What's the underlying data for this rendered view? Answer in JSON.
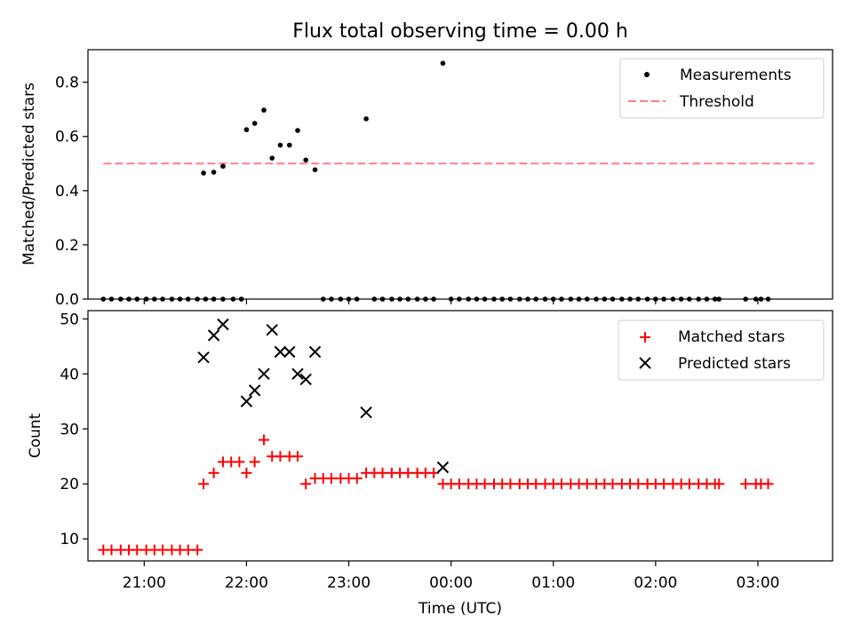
{
  "title": "Flux total observing time = 0.00 h",
  "chart_data": [
    {
      "type": "scatter",
      "panel": "top",
      "ylabel": "Matched/Predicted stars",
      "xlabel": "",
      "ylim": [
        0,
        0.92
      ],
      "yticks": [
        0.0,
        0.2,
        0.4,
        0.6,
        0.8
      ],
      "ytick_labels": [
        "0.0",
        "0.2",
        "0.4",
        "0.6",
        "0.8"
      ],
      "xlim_hours": [
        20.45,
        27.73
      ],
      "legend_position": "top-right",
      "grid": false,
      "threshold": {
        "name": "Threshold",
        "y": 0.5,
        "x_range_hours": [
          20.6,
          27.55
        ],
        "color": "#ff7f7f",
        "style": "dashed"
      },
      "series": [
        {
          "name": "Measurements",
          "color": "#000000",
          "marker": "dot",
          "points": [
            [
              20.6,
              0
            ],
            [
              20.68,
              0
            ],
            [
              20.77,
              0
            ],
            [
              20.85,
              0
            ],
            [
              20.93,
              0
            ],
            [
              21.02,
              0
            ],
            [
              21.1,
              0
            ],
            [
              21.18,
              0
            ],
            [
              21.27,
              0
            ],
            [
              21.35,
              0
            ],
            [
              21.43,
              0
            ],
            [
              21.52,
              0
            ],
            [
              21.6,
              0
            ],
            [
              21.68,
              0
            ],
            [
              21.77,
              0
            ],
            [
              21.58,
              0.465
            ],
            [
              21.68,
              0.468
            ],
            [
              21.77,
              0.49
            ],
            [
              21.87,
              0
            ],
            [
              21.95,
              0
            ],
            [
              22.0,
              0.625
            ],
            [
              22.08,
              0.648
            ],
            [
              22.17,
              0.697
            ],
            [
              22.25,
              0.52
            ],
            [
              22.33,
              0.568
            ],
            [
              22.42,
              0.568
            ],
            [
              22.5,
              0.622
            ],
            [
              22.58,
              0.513
            ],
            [
              22.67,
              0.477
            ],
            [
              22.75,
              0
            ],
            [
              22.83,
              0
            ],
            [
              22.92,
              0
            ],
            [
              23.0,
              0
            ],
            [
              23.08,
              0
            ],
            [
              23.17,
              0.665
            ],
            [
              23.25,
              0
            ],
            [
              23.33,
              0
            ],
            [
              23.42,
              0
            ],
            [
              23.5,
              0
            ],
            [
              23.58,
              0
            ],
            [
              23.67,
              0
            ],
            [
              23.75,
              0
            ],
            [
              23.83,
              0
            ],
            [
              23.92,
              0.87
            ],
            [
              24.0,
              0
            ],
            [
              24.08,
              0
            ],
            [
              24.17,
              0
            ],
            [
              24.25,
              0
            ],
            [
              24.33,
              0
            ],
            [
              24.42,
              0
            ],
            [
              24.5,
              0
            ],
            [
              24.58,
              0
            ],
            [
              24.67,
              0
            ],
            [
              24.75,
              0
            ],
            [
              24.83,
              0
            ],
            [
              24.92,
              0
            ],
            [
              25.0,
              0
            ],
            [
              25.08,
              0
            ],
            [
              25.17,
              0
            ],
            [
              25.25,
              0
            ],
            [
              25.33,
              0
            ],
            [
              25.42,
              0
            ],
            [
              25.5,
              0
            ],
            [
              25.58,
              0
            ],
            [
              25.67,
              0
            ],
            [
              25.75,
              0
            ],
            [
              25.83,
              0
            ],
            [
              25.92,
              0
            ],
            [
              26.0,
              0
            ],
            [
              26.08,
              0
            ],
            [
              26.17,
              0
            ],
            [
              26.25,
              0
            ],
            [
              26.33,
              0
            ],
            [
              26.42,
              0
            ],
            [
              26.5,
              0
            ],
            [
              26.58,
              0
            ],
            [
              26.62,
              0
            ],
            [
              26.88,
              0
            ],
            [
              26.98,
              0
            ],
            [
              27.03,
              0
            ],
            [
              27.1,
              0
            ]
          ]
        }
      ]
    },
    {
      "type": "scatter",
      "panel": "bottom",
      "ylabel": "Count",
      "xlabel": "Time (UTC)",
      "ylim": [
        6,
        51.5
      ],
      "yticks": [
        10,
        20,
        30,
        40,
        50
      ],
      "ytick_labels": [
        "10",
        "20",
        "30",
        "40",
        "50"
      ],
      "xlim_hours": [
        20.45,
        27.73
      ],
      "xticks_hours": [
        21,
        22,
        23,
        24,
        25,
        26,
        27
      ],
      "xtick_labels": [
        "21:00",
        "22:00",
        "23:00",
        "00:00",
        "01:00",
        "02:00",
        "03:00"
      ],
      "legend_position": "top-right",
      "grid": false,
      "series": [
        {
          "name": "Matched stars",
          "color": "#ff0000",
          "marker": "plus",
          "points": [
            [
              20.6,
              8
            ],
            [
              20.68,
              8
            ],
            [
              20.77,
              8
            ],
            [
              20.85,
              8
            ],
            [
              20.93,
              8
            ],
            [
              21.02,
              8
            ],
            [
              21.1,
              8
            ],
            [
              21.18,
              8
            ],
            [
              21.27,
              8
            ],
            [
              21.35,
              8
            ],
            [
              21.43,
              8
            ],
            [
              21.52,
              8
            ],
            [
              21.58,
              20
            ],
            [
              21.68,
              22
            ],
            [
              21.77,
              24
            ],
            [
              21.85,
              24
            ],
            [
              21.93,
              24
            ],
            [
              22.0,
              22
            ],
            [
              22.08,
              24
            ],
            [
              22.17,
              28
            ],
            [
              22.25,
              25
            ],
            [
              22.33,
              25
            ],
            [
              22.42,
              25
            ],
            [
              22.5,
              25
            ],
            [
              22.58,
              20
            ],
            [
              22.67,
              21
            ],
            [
              22.75,
              21
            ],
            [
              22.83,
              21
            ],
            [
              22.92,
              21
            ],
            [
              23.0,
              21
            ],
            [
              23.08,
              21
            ],
            [
              23.17,
              22
            ],
            [
              23.25,
              22
            ],
            [
              23.33,
              22
            ],
            [
              23.42,
              22
            ],
            [
              23.5,
              22
            ],
            [
              23.58,
              22
            ],
            [
              23.67,
              22
            ],
            [
              23.75,
              22
            ],
            [
              23.83,
              22
            ],
            [
              23.92,
              20
            ],
            [
              24.0,
              20
            ],
            [
              24.08,
              20
            ],
            [
              24.17,
              20
            ],
            [
              24.25,
              20
            ],
            [
              24.33,
              20
            ],
            [
              24.42,
              20
            ],
            [
              24.5,
              20
            ],
            [
              24.58,
              20
            ],
            [
              24.67,
              20
            ],
            [
              24.75,
              20
            ],
            [
              24.83,
              20
            ],
            [
              24.92,
              20
            ],
            [
              25.0,
              20
            ],
            [
              25.08,
              20
            ],
            [
              25.17,
              20
            ],
            [
              25.25,
              20
            ],
            [
              25.33,
              20
            ],
            [
              25.42,
              20
            ],
            [
              25.5,
              20
            ],
            [
              25.58,
              20
            ],
            [
              25.67,
              20
            ],
            [
              25.75,
              20
            ],
            [
              25.83,
              20
            ],
            [
              25.92,
              20
            ],
            [
              26.0,
              20
            ],
            [
              26.08,
              20
            ],
            [
              26.17,
              20
            ],
            [
              26.25,
              20
            ],
            [
              26.33,
              20
            ],
            [
              26.42,
              20
            ],
            [
              26.5,
              20
            ],
            [
              26.58,
              20
            ],
            [
              26.62,
              20
            ],
            [
              26.88,
              20
            ],
            [
              26.98,
              20
            ],
            [
              27.03,
              20
            ],
            [
              27.1,
              20
            ]
          ]
        },
        {
          "name": "Predicted stars",
          "color": "#000000",
          "marker": "x",
          "points": [
            [
              21.58,
              43
            ],
            [
              21.68,
              47
            ],
            [
              21.77,
              49
            ],
            [
              22.0,
              35
            ],
            [
              22.08,
              37
            ],
            [
              22.17,
              40
            ],
            [
              22.25,
              48
            ],
            [
              22.33,
              44
            ],
            [
              22.42,
              44
            ],
            [
              22.5,
              40
            ],
            [
              22.58,
              39
            ],
            [
              22.67,
              44
            ],
            [
              23.17,
              33
            ],
            [
              23.92,
              23
            ]
          ]
        }
      ]
    }
  ]
}
